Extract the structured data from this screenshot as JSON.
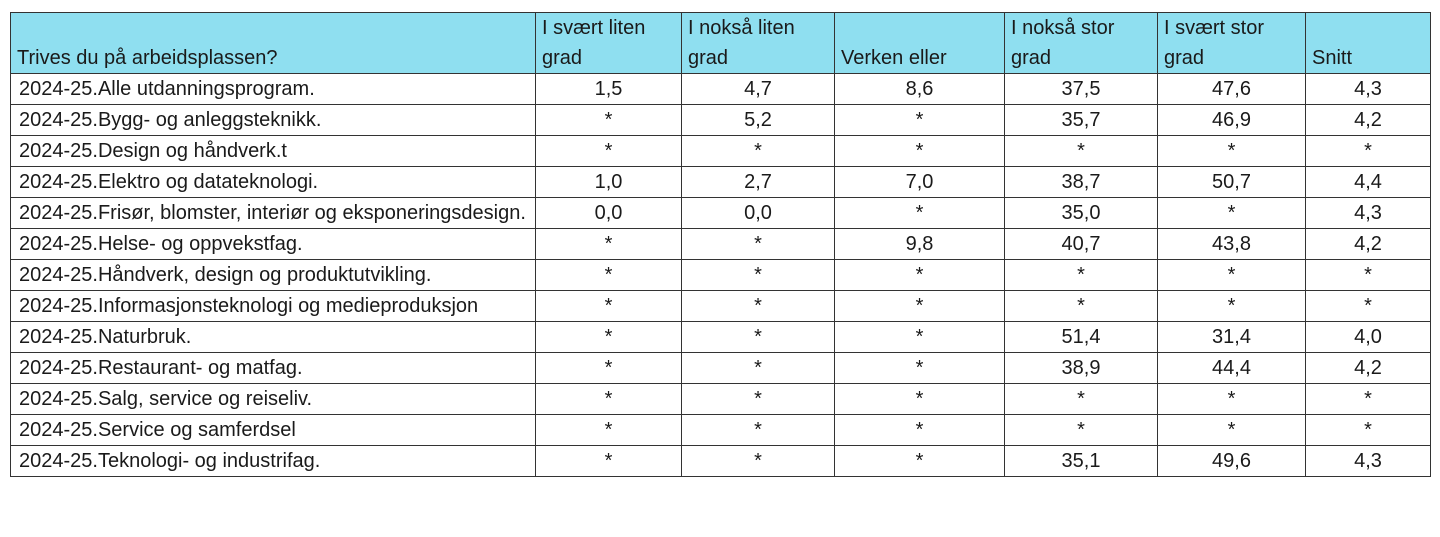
{
  "colors": {
    "header_bg": "#8fdff0",
    "border": "#333333",
    "text": "#1a1a1a"
  },
  "chart_data": {
    "type": "table",
    "title": "",
    "columns": [
      "Trives du på arbeidsplassen?",
      "I svært liten grad",
      "I nokså liten grad",
      "Verken eller",
      "I nokså stor grad",
      "I svært stor grad",
      "Snitt"
    ],
    "rows": [
      {
        "label": "2024-25.Alle utdanningsprogram.",
        "values": [
          "1,5",
          "4,7",
          "8,6",
          "37,5",
          "47,6",
          "4,3"
        ]
      },
      {
        "label": "2024-25.Bygg- og anleggsteknikk.",
        "values": [
          "*",
          "5,2",
          "*",
          "35,7",
          "46,9",
          "4,2"
        ]
      },
      {
        "label": "2024-25.Design og håndverk.t",
        "values": [
          "*",
          "*",
          "*",
          "*",
          "*",
          "*"
        ]
      },
      {
        "label": "2024-25.Elektro og datateknologi.",
        "values": [
          "1,0",
          "2,7",
          "7,0",
          "38,7",
          "50,7",
          "4,4"
        ]
      },
      {
        "label": "2024-25.Frisør, blomster, interiør og eksponeringsdesign.",
        "values": [
          "0,0",
          "0,0",
          "*",
          "35,0",
          "*",
          "4,3"
        ]
      },
      {
        "label": "2024-25.Helse- og oppvekstfag.",
        "values": [
          "*",
          "*",
          "9,8",
          "40,7",
          "43,8",
          "4,2"
        ]
      },
      {
        "label": "2024-25.Håndverk, design og produktutvikling.",
        "values": [
          "*",
          "*",
          "*",
          "*",
          "*",
          "*"
        ]
      },
      {
        "label": "2024-25.Informasjonsteknologi og medieproduksjon",
        "values": [
          "*",
          "*",
          "*",
          "*",
          "*",
          "*"
        ]
      },
      {
        "label": "2024-25.Naturbruk.",
        "values": [
          "*",
          "*",
          "*",
          "51,4",
          "31,4",
          "4,0"
        ]
      },
      {
        "label": "2024-25.Restaurant- og matfag.",
        "values": [
          "*",
          "*",
          "*",
          "38,9",
          "44,4",
          "4,2"
        ]
      },
      {
        "label": "2024-25.Salg, service og reiseliv.",
        "values": [
          "*",
          "*",
          "*",
          "*",
          "*",
          "*"
        ]
      },
      {
        "label": "2024-25.Service og samferdsel",
        "values": [
          "*",
          "*",
          "*",
          "*",
          "*",
          "*"
        ]
      },
      {
        "label": "2024-25.Teknologi- og industrifag.",
        "values": [
          "*",
          "*",
          "*",
          "35,1",
          "49,6",
          "4,3"
        ]
      }
    ]
  }
}
